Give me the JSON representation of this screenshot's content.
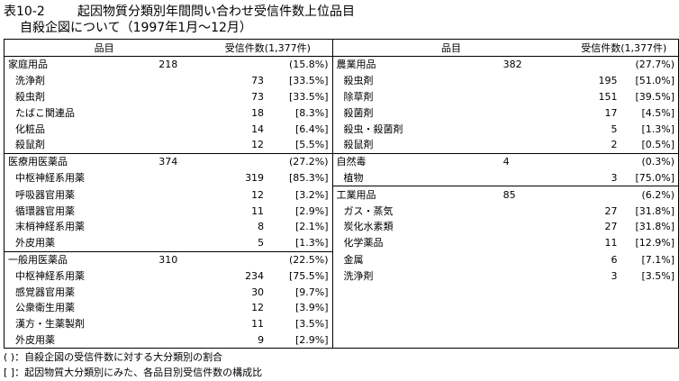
{
  "title_number": "表10-2",
  "title_text": "起因物質分類別年間問い合わせ受信件数上位品目",
  "subtitle": "自殺企図について（1997年1月～12月）",
  "headers": {
    "item": "品目",
    "count": "受信件数(1,377件)"
  },
  "left": [
    {
      "name": "家庭用品",
      "total": "218",
      "count": "",
      "pct": "(15.8%)",
      "group": true
    },
    {
      "name": "洗浄剤",
      "total": "",
      "count": "73",
      "pct": "[33.5%]"
    },
    {
      "name": "殺虫剤",
      "total": "",
      "count": "73",
      "pct": "[33.5%]"
    },
    {
      "name": "たばこ関連品",
      "total": "",
      "count": "18",
      "pct": "[8.3%]"
    },
    {
      "name": "化粧品",
      "total": "",
      "count": "14",
      "pct": "[6.4%]"
    },
    {
      "name": "殺鼠剤",
      "total": "",
      "count": "12",
      "pct": "[5.5%]"
    },
    {
      "name": "医療用医薬品",
      "total": "374",
      "count": "",
      "pct": "(27.2%)",
      "group": true
    },
    {
      "name": "中枢神経系用薬",
      "total": "",
      "count": "319",
      "pct": "[85.3%]"
    },
    {
      "name": "呼吸器官用薬",
      "total": "",
      "count": "12",
      "pct": "[3.2%]"
    },
    {
      "name": "循環器官用薬",
      "total": "",
      "count": "11",
      "pct": "[2.9%]"
    },
    {
      "name": "末梢神経系用薬",
      "total": "",
      "count": "8",
      "pct": "[2.1%]"
    },
    {
      "name": "外皮用薬",
      "total": "",
      "count": "5",
      "pct": "[1.3%]"
    },
    {
      "name": "一般用医薬品",
      "total": "310",
      "count": "",
      "pct": "(22.5%)",
      "group": true
    },
    {
      "name": "中枢神経系用薬",
      "total": "",
      "count": "234",
      "pct": "[75.5%]"
    },
    {
      "name": "感覚器官用薬",
      "total": "",
      "count": "30",
      "pct": "[9.7%]"
    },
    {
      "name": "公衆衛生用薬",
      "total": "",
      "count": "12",
      "pct": "[3.9%]"
    },
    {
      "name": "漢方・生薬製剤",
      "total": "",
      "count": "11",
      "pct": "[3.5%]"
    },
    {
      "name": "外皮用薬",
      "total": "",
      "count": "9",
      "pct": "[2.9%]"
    }
  ],
  "right": [
    {
      "name": "農業用品",
      "total": "382",
      "count": "",
      "pct": "(27.7%)",
      "group": true
    },
    {
      "name": "殺虫剤",
      "total": "",
      "count": "195",
      "pct": "[51.0%]"
    },
    {
      "name": "除草剤",
      "total": "",
      "count": "151",
      "pct": "[39.5%]"
    },
    {
      "name": "殺菌剤",
      "total": "",
      "count": "17",
      "pct": "[4.5%]"
    },
    {
      "name": "殺虫・殺菌剤",
      "total": "",
      "count": "5",
      "pct": "[1.3%]"
    },
    {
      "name": "殺鼠剤",
      "total": "",
      "count": "2",
      "pct": "[0.5%]"
    },
    {
      "name": "自然毒",
      "total": "4",
      "count": "",
      "pct": "(0.3%)",
      "group": true
    },
    {
      "name": "植物",
      "total": "",
      "count": "3",
      "pct": "[75.0%]"
    },
    {
      "name": "工業用品",
      "total": "85",
      "count": "",
      "pct": "(6.2%)",
      "group": true
    },
    {
      "name": "ガス・蒸気",
      "total": "",
      "count": "27",
      "pct": "[31.8%]"
    },
    {
      "name": "炭化水素類",
      "total": "",
      "count": "27",
      "pct": "[31.8%]"
    },
    {
      "name": "化学薬品",
      "total": "",
      "count": "11",
      "pct": "[12.9%]"
    },
    {
      "name": "金属",
      "total": "",
      "count": "6",
      "pct": "[7.1%]"
    },
    {
      "name": "洗浄剤",
      "total": "",
      "count": "3",
      "pct": "[3.5%]"
    }
  ],
  "notes": [
    "( )：自殺企図の受信件数に対する大分類別の割合",
    "[ ]：起因物質大分類別にみた、各品目別受信件数の構成比"
  ]
}
